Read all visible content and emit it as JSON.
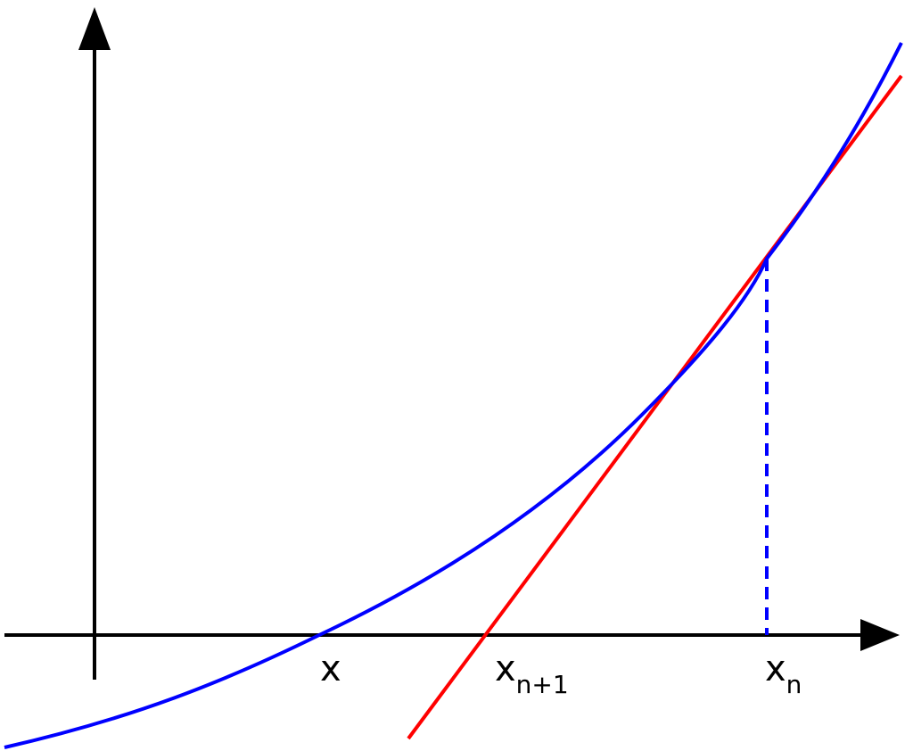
{
  "labels": {
    "root": "x",
    "next_base": "x",
    "next_sub": "n+1",
    "current_base": "x",
    "current_sub": "n"
  },
  "colors": {
    "curve": "#0000ff",
    "tangent": "#ff0000",
    "axes": "#000000",
    "guide": "#0000ff"
  }
}
